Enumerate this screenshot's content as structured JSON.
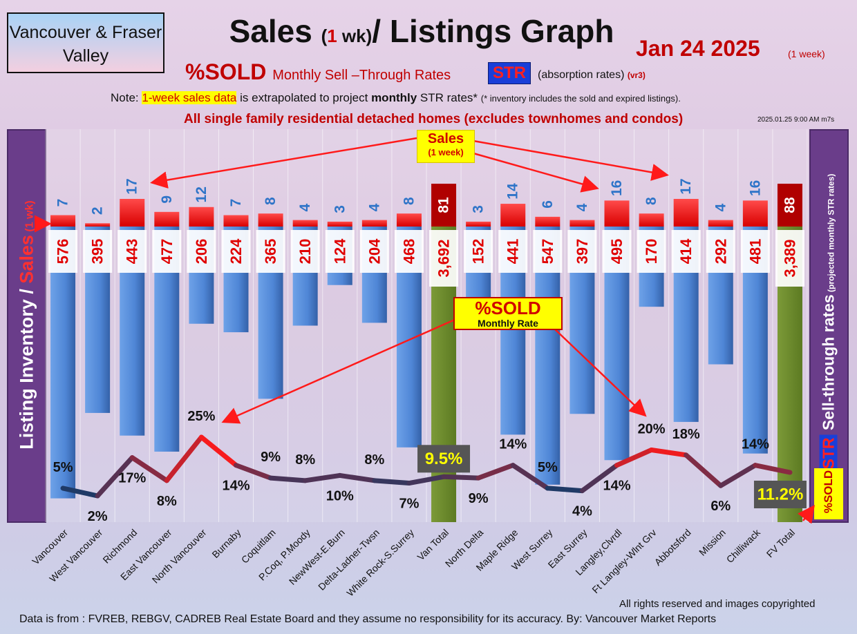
{
  "header": {
    "region": "Vancouver & Fraser Valley",
    "title_main": "Sales ",
    "title_paren_open": "(",
    "title_paren_num": "1",
    "title_paren_rest": " wk)",
    "title_end": "/ Listings Graph",
    "date": "Jan 24  2025",
    "date_note": "(1 week)",
    "sold_label": "%SOLD",
    "str_rates_label": "Monthly Sell –Through Rates",
    "str_badge": "STR",
    "absorption": "(absorption rates)",
    "version": "(vr3)",
    "note_prefix": "Note: ",
    "note_highlight": "1-week sales data",
    "note_mid": " is extrapolated to project ",
    "note_bold": "monthly",
    "note_after": " STR rates* ",
    "note_small": "(* inventory includes the sold and expired listings).",
    "all_homes": "All single family residential detached homes (excludes townhomes and condos)",
    "timestamp": "2025.01.25 9:00 AM m7s"
  },
  "axes": {
    "left_label_main": "Listing Inventory ",
    "left_label_slash": "/",
    "left_label_sales": " Sales",
    "left_label_small": " (1 wk)",
    "right_label_str": "STR",
    "right_label_main": " Sell-through rates",
    "right_label_small": " (projected monthly STR rates)",
    "right_sold": "%SOLD"
  },
  "callouts": {
    "sales_title": "Sales",
    "sales_sub": "(1 week)",
    "sold_title": "%SOLD",
    "sold_sub": "Monthly Rate"
  },
  "footer": {
    "copyright": "All rights reserved and  images copyrighted",
    "source": "Data is from : FVREB, REBGV, CADREB Real Estate Board and they assume no responsibility for its accuracy. By: Vancouver Market Reports"
  },
  "colors": {
    "sales_bar": "#ff1a1a",
    "total_sales_bar": "#b00000",
    "inventory_bar": "#4f86d6",
    "total_inventory_bar": "#6f8c2f",
    "str_line_low": "#1f3a66",
    "str_line_high": "#ff1a1a",
    "sales_label": "#2e74c8",
    "inventory_label": "#e00000"
  },
  "chart_data": {
    "type": "bar",
    "categories": [
      "Vancouver",
      "West Vancouver",
      "Richmond",
      "East Vancouver",
      "North Vancouver",
      "Burnaby",
      "Coquitlam",
      "P.Coq, P.Moody",
      "NewWest-E.Burn",
      "Delta-Ladner-Twsn",
      "White Rock-S.Surrey",
      "Van Total",
      "North Delta",
      "Maple Ridge",
      "West Surrey",
      "East Surrey",
      "Langley,Clvrdl",
      "Ft Langley-Wlnt Grv",
      "Abbotsford",
      "Mission",
      "Chilliwack",
      "FV Total"
    ],
    "sales_labels": [
      "7",
      "2",
      "17",
      "9",
      "12",
      "7",
      "8",
      "4",
      "3",
      "4",
      "8",
      "81",
      "3",
      "14",
      "6",
      "4",
      "16",
      "8",
      "17",
      "4",
      "16",
      "88"
    ],
    "inventory_labels": [
      "576",
      "395",
      "443",
      "477",
      "206",
      "224",
      "365",
      "210",
      "124",
      "204",
      "468",
      "3,692",
      "152",
      "441",
      "547",
      "397",
      "495",
      "170",
      "414",
      "292",
      "481",
      "3,389"
    ],
    "str_labels": [
      "5%",
      "2%",
      "17%",
      "8%",
      "25%",
      "14%",
      "9%",
      "8%",
      "10%",
      "8%",
      "7%",
      "9.5%",
      "9%",
      "14%",
      "5%",
      "4%",
      "14%",
      "20%",
      "18%",
      "6%",
      "14%",
      "11.2%"
    ],
    "series": [
      {
        "name": "Sales",
        "values": [
          7,
          2,
          17,
          9,
          12,
          7,
          8,
          4,
          3,
          4,
          8,
          81,
          3,
          14,
          6,
          4,
          16,
          8,
          17,
          4,
          16,
          88
        ]
      },
      {
        "name": "Listing Inventory",
        "values": [
          576,
          395,
          443,
          477,
          206,
          224,
          365,
          210,
          124,
          204,
          468,
          3692,
          152,
          441,
          547,
          397,
          495,
          170,
          414,
          292,
          481,
          3389
        ]
      },
      {
        "name": "%SOLD",
        "values": [
          5,
          2,
          17,
          8,
          25,
          14,
          9,
          8,
          10,
          8,
          7,
          9.5,
          9,
          14,
          5,
          4,
          14,
          20,
          18,
          6,
          14,
          11.2
        ]
      }
    ],
    "totals": [
      "Van Total",
      "FV Total"
    ]
  }
}
